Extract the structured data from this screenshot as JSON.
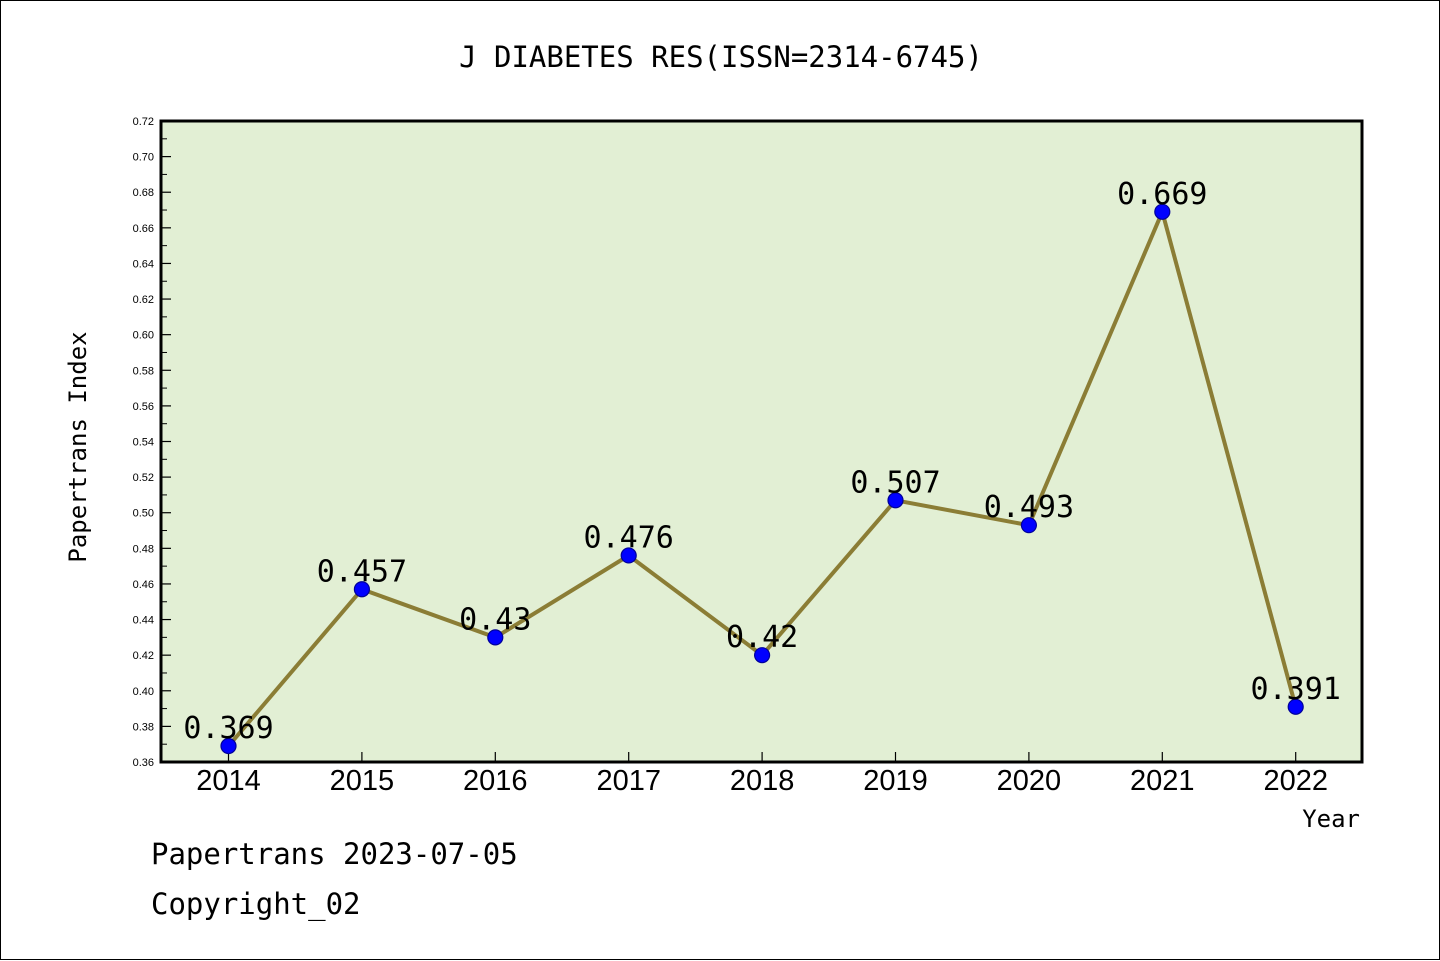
{
  "chart_data": {
    "type": "line",
    "title": "J DIABETES RES(ISSN=2314-6745)",
    "xlabel": "Year",
    "ylabel": "Papertrans Index",
    "categories": [
      "2014",
      "2015",
      "2016",
      "2017",
      "2018",
      "2019",
      "2020",
      "2021",
      "2022"
    ],
    "series": [
      {
        "values": [
          0.369,
          0.457,
          0.43,
          0.476,
          0.42,
          0.507,
          0.493,
          0.669,
          0.391
        ],
        "data_labels": [
          "0.369",
          "0.457",
          "0.43",
          "0.476",
          "0.42",
          "0.507",
          "0.493",
          "0.669",
          "0.391"
        ]
      }
    ],
    "ylim": [
      0.36,
      0.72
    ],
    "yticks": [
      "0.36",
      "0.38",
      "0.40",
      "0.42",
      "0.44",
      "0.46",
      "0.48",
      "0.50",
      "0.52",
      "0.54",
      "0.56",
      "0.58",
      "0.60",
      "0.62",
      "0.64",
      "0.66",
      "0.68",
      "0.70",
      "0.72"
    ],
    "grid": false,
    "legend": "none",
    "colors": {
      "plot_background": "#e2efd4",
      "line": "#8b7d35",
      "marker": "#0000ff",
      "marker_edge": "#000099",
      "axis": "#000000"
    }
  },
  "footer": {
    "line1": "Papertrans 2023-07-05",
    "line2": "Copyright_02"
  }
}
